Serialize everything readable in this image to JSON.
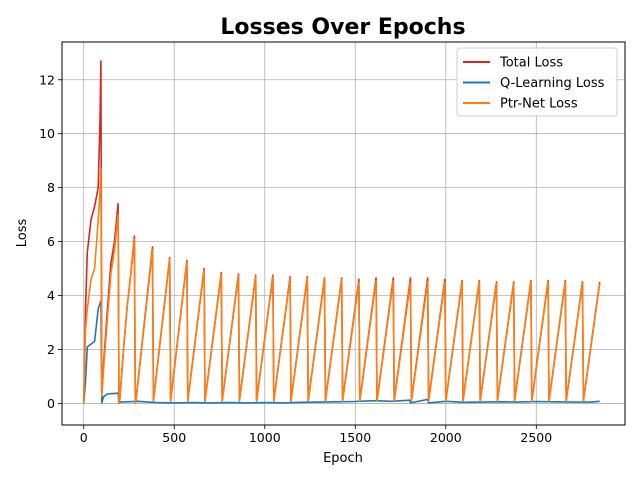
{
  "chart_data": {
    "type": "line",
    "title": "Losses Over Epochs",
    "xlabel": "Epoch",
    "ylabel": "Loss",
    "xlim": [
      -120,
      2990
    ],
    "ylim": [
      -0.8,
      13.4
    ],
    "xticks": [
      0,
      500,
      1000,
      1500,
      2000,
      2500
    ],
    "yticks": [
      0,
      2,
      4,
      6,
      8,
      10,
      12
    ],
    "grid": true,
    "legend_position": "top-right",
    "series": [
      {
        "name": "Total Loss",
        "color": "#d62728",
        "x": [
          0,
          10,
          20,
          40,
          60,
          80,
          90,
          95,
          100,
          110,
          130,
          150,
          170,
          190,
          195,
          200,
          220,
          240,
          260,
          280,
          285,
          290,
          380,
          385,
          475,
          480,
          570,
          575,
          665,
          670,
          760,
          765,
          855,
          860,
          950,
          955,
          1045,
          1050,
          1140,
          1145,
          1235,
          1240,
          1330,
          1335,
          1425,
          1430,
          1520,
          1525,
          1615,
          1620,
          1710,
          1715,
          1805,
          1810,
          1900,
          1905,
          1995,
          2000,
          2090,
          2095,
          2185,
          2190,
          2280,
          2285,
          2375,
          2380,
          2470,
          2475,
          2565,
          2570,
          2660,
          2665,
          2755,
          2760,
          2850
        ],
        "y": [
          0,
          3.5,
          5.6,
          6.8,
          7.3,
          8.0,
          10.5,
          12.7,
          0.3,
          1.5,
          3.4,
          5.2,
          6.0,
          7.4,
          0,
          0.2,
          2.0,
          3.6,
          4.8,
          6.2,
          0,
          0.2,
          5.8,
          0.1,
          5.4,
          0.1,
          5.3,
          0.1,
          5.0,
          0.1,
          4.85,
          0.1,
          4.8,
          0.1,
          4.75,
          0.1,
          4.75,
          0.1,
          4.7,
          0.1,
          4.7,
          0.1,
          4.65,
          0.1,
          4.65,
          0.1,
          4.6,
          0.1,
          4.65,
          0.1,
          4.65,
          0.1,
          4.65,
          0.1,
          4.65,
          0.1,
          4.6,
          0.1,
          4.55,
          0.1,
          4.55,
          0.1,
          4.5,
          0.1,
          4.5,
          0.1,
          4.55,
          0.1,
          4.55,
          0.1,
          4.55,
          0.1,
          4.5,
          0.1,
          4.5
        ]
      },
      {
        "name": "Q-Learning Loss",
        "color": "#1f77b4",
        "x": [
          0,
          10,
          20,
          40,
          60,
          80,
          90,
          95,
          100,
          110,
          130,
          150,
          170,
          190,
          195,
          200,
          300,
          380,
          400,
          500,
          600,
          700,
          800,
          900,
          1000,
          1100,
          1200,
          1300,
          1400,
          1500,
          1600,
          1700,
          1800,
          1805,
          1900,
          1905,
          2000,
          2100,
          2200,
          2300,
          2400,
          2500,
          2600,
          2700,
          2800,
          2850
        ],
        "y": [
          0,
          0.8,
          2.1,
          2.2,
          2.3,
          3.5,
          3.7,
          3.8,
          0.02,
          0.25,
          0.35,
          0.36,
          0.37,
          0.38,
          0.02,
          0.05,
          0.08,
          0.04,
          0.03,
          0.02,
          0.03,
          0.02,
          0.03,
          0.02,
          0.03,
          0.02,
          0.04,
          0.05,
          0.06,
          0.07,
          0.1,
          0.08,
          0.12,
          0.02,
          0.15,
          0.02,
          0.08,
          0.04,
          0.05,
          0.06,
          0.05,
          0.07,
          0.06,
          0.05,
          0.05,
          0.08
        ]
      },
      {
        "name": "Ptr-Net Loss",
        "color": "#ff7f0e",
        "x": [
          0,
          10,
          20,
          40,
          60,
          80,
          90,
          95,
          100,
          110,
          130,
          150,
          170,
          190,
          195,
          200,
          220,
          240,
          260,
          280,
          285,
          290,
          380,
          385,
          475,
          480,
          570,
          575,
          665,
          670,
          760,
          765,
          855,
          860,
          950,
          955,
          1045,
          1050,
          1140,
          1145,
          1235,
          1240,
          1330,
          1335,
          1425,
          1430,
          1520,
          1525,
          1615,
          1620,
          1710,
          1715,
          1805,
          1810,
          1900,
          1905,
          1995,
          2000,
          2090,
          2095,
          2185,
          2190,
          2280,
          2285,
          2375,
          2380,
          2470,
          2475,
          2565,
          2570,
          2660,
          2665,
          2755,
          2760,
          2850
        ],
        "y": [
          0,
          2.7,
          3.5,
          4.6,
          5.0,
          6.8,
          7.8,
          8.7,
          0.28,
          1.3,
          3.1,
          4.8,
          5.7,
          7.0,
          0,
          0.18,
          2.0,
          3.6,
          4.8,
          6.1,
          0,
          0.18,
          5.7,
          0.08,
          5.35,
          0.08,
          5.25,
          0.08,
          4.95,
          0.08,
          4.8,
          0.08,
          4.75,
          0.08,
          4.7,
          0.08,
          4.7,
          0.08,
          4.65,
          0.08,
          4.65,
          0.08,
          4.6,
          0.08,
          4.6,
          0.08,
          4.5,
          0.08,
          4.55,
          0.08,
          4.55,
          0.08,
          4.5,
          0.08,
          4.5,
          0.08,
          4.5,
          0.08,
          4.5,
          0.08,
          4.5,
          0.08,
          4.45,
          0.08,
          4.45,
          0.08,
          4.5,
          0.08,
          4.5,
          0.08,
          4.5,
          0.08,
          4.45,
          0.08,
          4.45
        ]
      }
    ]
  }
}
